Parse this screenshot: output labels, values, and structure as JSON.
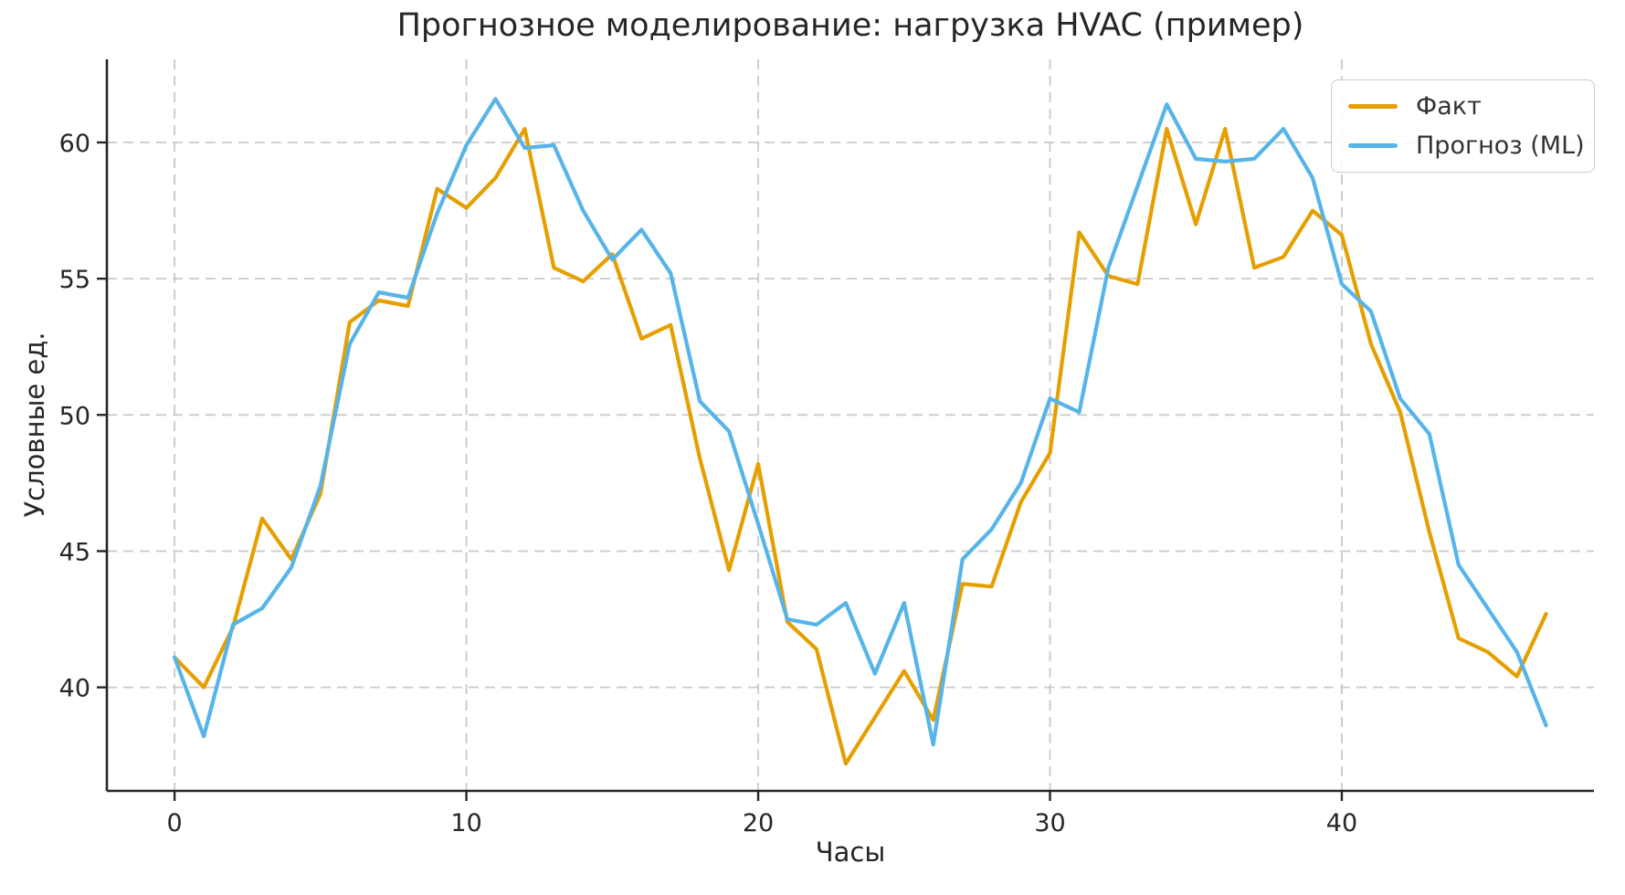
{
  "title": "Прогнозное моделирование: нагрузка HVAC (пример)",
  "legend": {
    "items": [
      {
        "label": "Факт",
        "color": "#E69F00"
      },
      {
        "label": "Прогноз (ML)",
        "color": "#56B4E9"
      }
    ]
  },
  "axes": {
    "xlabel": "Часы",
    "ylabel": "Условные ед."
  },
  "chart_data": {
    "type": "line",
    "title": "Прогнозное моделирование: нагрузка HVAC (пример)",
    "xlabel": "Часы",
    "ylabel": "Условные ед.",
    "x": [
      0,
      1,
      2,
      3,
      4,
      5,
      6,
      7,
      8,
      9,
      10,
      11,
      12,
      13,
      14,
      15,
      16,
      17,
      18,
      19,
      20,
      21,
      22,
      23,
      24,
      25,
      26,
      27,
      28,
      29,
      30,
      31,
      32,
      33,
      34,
      35,
      36,
      37,
      38,
      39,
      40,
      41,
      42,
      43,
      44,
      45,
      46,
      47
    ],
    "series": [
      {
        "name": "Факт",
        "color": "#E69F00",
        "values": [
          41.1,
          40.0,
          42.2,
          46.2,
          44.7,
          47.1,
          53.4,
          54.2,
          54.0,
          58.3,
          57.6,
          58.7,
          60.5,
          55.4,
          54.9,
          55.9,
          52.8,
          53.3,
          48.4,
          44.3,
          48.2,
          42.4,
          41.4,
          37.2,
          38.9,
          40.6,
          38.8,
          43.8,
          43.7,
          46.8,
          48.6,
          56.7,
          55.1,
          54.8,
          60.5,
          57.0,
          60.5,
          55.4,
          55.8,
          57.5,
          56.6,
          52.6,
          50.1,
          45.7,
          41.8,
          41.3,
          40.4,
          42.7
        ]
      },
      {
        "name": "Прогноз (ML)",
        "color": "#56B4E9",
        "values": [
          41.1,
          38.2,
          42.3,
          42.9,
          44.4,
          47.4,
          52.6,
          54.5,
          54.3,
          57.4,
          59.9,
          61.6,
          59.8,
          59.9,
          57.5,
          55.7,
          56.8,
          55.2,
          50.5,
          49.4,
          46.0,
          42.5,
          42.3,
          43.1,
          40.5,
          43.1,
          37.9,
          44.7,
          45.8,
          47.5,
          50.6,
          50.1,
          55.4,
          58.4,
          61.4,
          59.4,
          59.3,
          59.4,
          60.5,
          58.7,
          54.8,
          53.8,
          50.6,
          49.3,
          44.5,
          42.9,
          41.3,
          38.6
        ]
      }
    ],
    "xticks": [
      0,
      10,
      20,
      30,
      40
    ],
    "yticks": [
      40,
      45,
      50,
      55,
      60
    ],
    "xlim": [
      -2.32,
      48.64
    ],
    "ylim": [
      36.2,
      63.05
    ],
    "grid": true,
    "grid_style": "dashed",
    "legend_position": "upper right",
    "spines": [
      "left",
      "bottom"
    ]
  },
  "colors": {
    "background": "#ffffff",
    "grid": "#c9c9c9",
    "text": "#262626",
    "spine": "#262626",
    "legend_border": "#cccccc"
  }
}
